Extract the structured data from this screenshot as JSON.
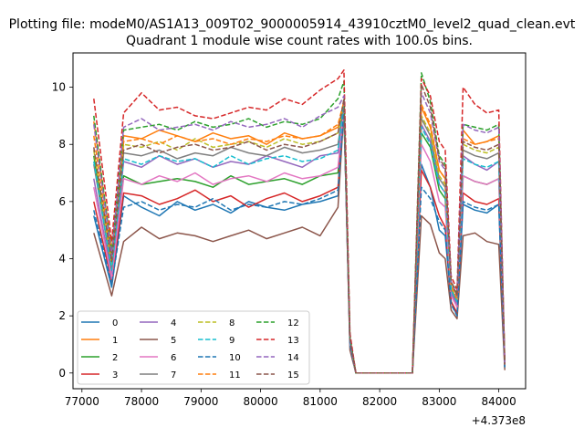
{
  "figure": {
    "suptitle": "Plotting file: modeM0/AS1A13_009T02_9000005914_43910cztM0_level2_quad_clean.evt",
    "axes_title": "Quadrant 1 module wise count rates with 100.0s bins.",
    "x_offset_label": "+4.373e8"
  },
  "chart_data": {
    "type": "line",
    "title": "Quadrant 1 module wise count rates with 100.0s bins.",
    "xlabel": "",
    "ylabel": "",
    "x_offset_text": "+4.373e8",
    "xlim": [
      76850,
      84450
    ],
    "ylim": [
      -0.55,
      11.2
    ],
    "x_ticks": [
      77000,
      78000,
      79000,
      80000,
      81000,
      82000,
      83000,
      84000
    ],
    "y_ticks": [
      0,
      2,
      4,
      6,
      8,
      10
    ],
    "grid": false,
    "legend": {
      "placement": "lower-left",
      "columns": 4
    },
    "series": [
      {
        "name": "0",
        "color": "#1f77b4",
        "style": "solid",
        "x": [
          77200,
          77500,
          77700,
          78000,
          78300,
          78600,
          78900,
          79200,
          79500,
          79800,
          80100,
          80400,
          80700,
          81000,
          81300,
          81400,
          81500,
          81600,
          81800,
          82000,
          82300,
          82550,
          82700,
          82850,
          83000,
          83100,
          83200,
          83300,
          83400,
          83600,
          83800,
          84000,
          84100
        ],
        "y": [
          5.5,
          3.0,
          6.2,
          5.8,
          5.5,
          6.0,
          5.7,
          5.9,
          5.6,
          6.0,
          5.8,
          5.7,
          5.9,
          6.0,
          6.2,
          9.2,
          1.0,
          0.0,
          0.0,
          0.0,
          0.0,
          0.0,
          7.3,
          6.5,
          5.0,
          4.8,
          2.5,
          2.0,
          5.9,
          5.7,
          5.6,
          5.9,
          0.2
        ]
      },
      {
        "name": "1",
        "color": "#ff7f0e",
        "style": "solid",
        "x": [
          77200,
          77500,
          77700,
          78000,
          78300,
          78600,
          78900,
          79200,
          79500,
          79800,
          80100,
          80400,
          80700,
          81000,
          81300,
          81400,
          81500,
          81600,
          81800,
          82000,
          82300,
          82550,
          82700,
          82850,
          83000,
          83100,
          83200,
          83300,
          83400,
          83600,
          83800,
          84000,
          84100
        ],
        "y": [
          8.8,
          4.3,
          8.3,
          8.2,
          8.5,
          8.3,
          8.1,
          8.4,
          8.2,
          8.3,
          8.0,
          8.4,
          8.2,
          8.3,
          8.6,
          9.4,
          1.2,
          0.0,
          0.0,
          0.0,
          0.0,
          0.0,
          9.3,
          8.6,
          7.1,
          6.8,
          3.0,
          2.5,
          8.5,
          8.0,
          8.1,
          8.3,
          0.3
        ]
      },
      {
        "name": "2",
        "color": "#2ca02c",
        "style": "solid",
        "x": [
          77200,
          77500,
          77700,
          78000,
          78300,
          78600,
          78900,
          79200,
          79500,
          79800,
          80100,
          80400,
          80700,
          81000,
          81300,
          81400,
          81500,
          81600,
          81800,
          82000,
          82300,
          82550,
          82700,
          82850,
          83000,
          83100,
          83200,
          83300,
          83400,
          83600,
          83800,
          84000,
          84100
        ],
        "y": [
          7.6,
          3.5,
          6.9,
          6.6,
          6.7,
          6.8,
          6.7,
          6.5,
          6.9,
          6.6,
          6.7,
          6.8,
          6.6,
          6.9,
          7.0,
          9.3,
          1.1,
          0.0,
          0.0,
          0.0,
          0.0,
          0.0,
          8.4,
          7.9,
          6.4,
          6.1,
          2.8,
          2.4,
          6.9,
          6.7,
          6.6,
          6.8,
          0.2
        ]
      },
      {
        "name": "3",
        "color": "#d62728",
        "style": "solid",
        "x": [
          77200,
          77500,
          77700,
          78000,
          78300,
          78600,
          78900,
          79200,
          79500,
          79800,
          80100,
          80400,
          80700,
          81000,
          81300,
          81400,
          81500,
          81600,
          81800,
          82000,
          82300,
          82550,
          82700,
          82850,
          83000,
          83100,
          83200,
          83300,
          83400,
          83600,
          83800,
          84000,
          84100
        ],
        "y": [
          6.0,
          3.2,
          6.3,
          6.2,
          5.9,
          6.1,
          6.4,
          6.0,
          6.2,
          5.8,
          6.1,
          6.3,
          6.0,
          6.2,
          6.5,
          9.3,
          1.0,
          0.0,
          0.0,
          0.0,
          0.0,
          0.0,
          7.1,
          6.5,
          5.5,
          5.1,
          2.5,
          2.1,
          6.3,
          6.0,
          5.9,
          6.1,
          0.2
        ]
      },
      {
        "name": "4",
        "color": "#9467bd",
        "style": "solid",
        "x": [
          77200,
          77500,
          77700,
          78000,
          78300,
          78600,
          78900,
          79200,
          79500,
          79800,
          80100,
          80400,
          80700,
          81000,
          81300,
          81400,
          81500,
          81600,
          81800,
          82000,
          82300,
          82550,
          82700,
          82850,
          83000,
          83100,
          83200,
          83300,
          83400,
          83600,
          83800,
          84000,
          84100
        ],
        "y": [
          6.8,
          3.4,
          7.4,
          7.2,
          7.6,
          7.3,
          7.5,
          7.2,
          7.4,
          7.3,
          7.6,
          7.4,
          7.2,
          7.6,
          7.7,
          9.3,
          1.1,
          0.0,
          0.0,
          0.0,
          0.0,
          0.0,
          8.7,
          8.1,
          6.6,
          6.3,
          2.8,
          2.4,
          7.6,
          7.3,
          7.1,
          7.4,
          0.2
        ]
      },
      {
        "name": "5",
        "color": "#8c564b",
        "style": "solid",
        "x": [
          77200,
          77500,
          77700,
          78000,
          78300,
          78600,
          78900,
          79200,
          79500,
          79800,
          80100,
          80400,
          80700,
          81000,
          81300,
          81400,
          81500,
          81600,
          81800,
          82000,
          82300,
          82550,
          82700,
          82850,
          83000,
          83100,
          83200,
          83300,
          83400,
          83600,
          83800,
          84000,
          84100
        ],
        "y": [
          4.9,
          2.7,
          4.6,
          5.1,
          4.7,
          4.9,
          4.8,
          4.6,
          4.8,
          5.0,
          4.7,
          4.9,
          5.1,
          4.8,
          5.8,
          9.2,
          0.8,
          0.0,
          0.0,
          0.0,
          0.0,
          0.0,
          5.5,
          5.2,
          4.2,
          4.0,
          2.2,
          1.9,
          4.8,
          4.9,
          4.6,
          4.5,
          0.1
        ]
      },
      {
        "name": "6",
        "color": "#e377c2",
        "style": "solid",
        "x": [
          77200,
          77500,
          77700,
          78000,
          78300,
          78600,
          78900,
          79200,
          79500,
          79800,
          80100,
          80400,
          80700,
          81000,
          81300,
          81400,
          81500,
          81600,
          81800,
          82000,
          82300,
          82550,
          82700,
          82850,
          83000,
          83100,
          83200,
          83300,
          83400,
          83600,
          83800,
          84000,
          84100
        ],
        "y": [
          6.5,
          3.3,
          6.8,
          6.6,
          6.9,
          6.7,
          7.0,
          6.6,
          6.8,
          6.9,
          6.7,
          7.0,
          6.8,
          6.9,
          7.2,
          9.3,
          1.0,
          0.0,
          0.0,
          0.0,
          0.0,
          0.0,
          8.0,
          7.4,
          6.0,
          5.8,
          2.7,
          2.3,
          6.9,
          6.7,
          6.6,
          6.8,
          0.2
        ]
      },
      {
        "name": "7",
        "color": "#7f7f7f",
        "style": "solid",
        "x": [
          77200,
          77500,
          77700,
          78000,
          78300,
          78600,
          78900,
          79200,
          79500,
          79800,
          80100,
          80400,
          80700,
          81000,
          81300,
          81400,
          81500,
          81600,
          81800,
          82000,
          82300,
          82550,
          82700,
          82850,
          83000,
          83100,
          83200,
          83300,
          83400,
          83600,
          83800,
          84000,
          84100
        ],
        "y": [
          7.3,
          3.6,
          7.7,
          7.6,
          7.8,
          7.5,
          7.7,
          7.6,
          7.9,
          7.7,
          7.6,
          7.9,
          7.7,
          7.8,
          8.0,
          9.4,
          1.1,
          0.0,
          0.0,
          0.0,
          0.0,
          0.0,
          8.9,
          8.3,
          6.8,
          6.5,
          2.9,
          2.5,
          7.8,
          7.6,
          7.5,
          7.7,
          0.2
        ]
      },
      {
        "name": "8",
        "color": "#bcbd22",
        "style": "dashed",
        "x": [
          77200,
          77500,
          77700,
          78000,
          78300,
          78600,
          78900,
          79200,
          79500,
          79800,
          80100,
          80400,
          80700,
          81000,
          81300,
          81400,
          81500,
          81600,
          81800,
          82000,
          82300,
          82550,
          82700,
          82850,
          83000,
          83100,
          83200,
          83300,
          83400,
          83600,
          83800,
          84000,
          84100
        ],
        "y": [
          7.8,
          3.8,
          8.0,
          7.9,
          8.1,
          7.8,
          8.2,
          7.9,
          8.0,
          8.1,
          7.9,
          8.2,
          8.0,
          8.1,
          8.4,
          9.5,
          1.2,
          0.0,
          0.0,
          0.0,
          0.0,
          0.0,
          9.0,
          8.4,
          6.9,
          6.6,
          3.0,
          2.6,
          8.0,
          7.8,
          7.7,
          7.9,
          0.3
        ]
      },
      {
        "name": "9",
        "color": "#17becf",
        "style": "dashed",
        "x": [
          77200,
          77500,
          77700,
          78000,
          78300,
          78600,
          78900,
          79200,
          79500,
          79800,
          80100,
          80400,
          80700,
          81000,
          81300,
          81400,
          81500,
          81600,
          81800,
          82000,
          82300,
          82550,
          82700,
          82850,
          83000,
          83100,
          83200,
          83300,
          83400,
          83600,
          83800,
          84000,
          84100
        ],
        "y": [
          7.4,
          3.6,
          7.5,
          7.3,
          7.6,
          7.4,
          7.5,
          7.2,
          7.6,
          7.3,
          7.5,
          7.6,
          7.4,
          7.5,
          7.8,
          9.4,
          1.1,
          0.0,
          0.0,
          0.0,
          0.0,
          0.0,
          8.6,
          8.0,
          6.6,
          6.3,
          2.9,
          2.5,
          7.5,
          7.3,
          7.2,
          7.4,
          0.2
        ]
      },
      {
        "name": "10",
        "color": "#1f77b4",
        "style": "dashed",
        "x": [
          77200,
          77500,
          77700,
          78000,
          78300,
          78600,
          78900,
          79200,
          79500,
          79800,
          80100,
          80400,
          80700,
          81000,
          81300,
          81400,
          81500,
          81600,
          81800,
          82000,
          82300,
          82550,
          82700,
          82850,
          83000,
          83100,
          83200,
          83300,
          83400,
          83600,
          83800,
          84000,
          84100
        ],
        "y": [
          5.7,
          3.1,
          5.8,
          6.0,
          5.7,
          5.9,
          5.8,
          6.1,
          5.7,
          5.9,
          5.8,
          6.0,
          5.9,
          6.1,
          6.4,
          9.2,
          1.0,
          0.0,
          0.0,
          0.0,
          0.0,
          0.0,
          6.5,
          6.1,
          5.3,
          5.0,
          2.4,
          2.0,
          6.0,
          5.8,
          5.7,
          5.9,
          0.2
        ]
      },
      {
        "name": "11",
        "color": "#ff7f0e",
        "style": "dashed",
        "x": [
          77200,
          77500,
          77700,
          78000,
          78300,
          78600,
          78900,
          79200,
          79500,
          79800,
          80100,
          80400,
          80700,
          81000,
          81300,
          81400,
          81500,
          81600,
          81800,
          82000,
          82300,
          82550,
          82700,
          82850,
          83000,
          83100,
          83200,
          83300,
          83400,
          83600,
          83800,
          84000,
          84100
        ],
        "y": [
          8.3,
          4.0,
          8.1,
          8.2,
          8.0,
          8.3,
          8.1,
          8.2,
          8.0,
          8.2,
          8.1,
          8.3,
          8.2,
          8.3,
          8.7,
          9.5,
          1.2,
          0.0,
          0.0,
          0.0,
          0.0,
          0.0,
          9.4,
          8.7,
          7.1,
          6.8,
          3.1,
          2.6,
          8.2,
          8.0,
          8.1,
          8.2,
          0.3
        ]
      },
      {
        "name": "12",
        "color": "#2ca02c",
        "style": "dashed",
        "x": [
          77200,
          77500,
          77700,
          78000,
          78300,
          78600,
          78900,
          79200,
          79500,
          79800,
          80100,
          80400,
          80700,
          81000,
          81300,
          81400,
          81500,
          81600,
          81800,
          82000,
          82300,
          82550,
          82700,
          82850,
          83000,
          83100,
          83200,
          83300,
          83400,
          83600,
          83800,
          84000,
          84100
        ],
        "y": [
          9.0,
          4.2,
          8.5,
          8.6,
          8.7,
          8.5,
          8.8,
          8.6,
          8.7,
          8.9,
          8.6,
          8.8,
          8.7,
          8.9,
          9.6,
          10.2,
          1.3,
          0.0,
          0.0,
          0.0,
          0.0,
          0.0,
          10.5,
          9.5,
          7.6,
          7.3,
          3.2,
          2.8,
          8.7,
          8.6,
          8.5,
          8.7,
          0.3
        ]
      },
      {
        "name": "13",
        "color": "#d62728",
        "style": "dashed",
        "x": [
          77200,
          77500,
          77700,
          78000,
          78300,
          78600,
          78900,
          79200,
          79500,
          79800,
          80100,
          80400,
          80700,
          81000,
          81300,
          81400,
          81500,
          81600,
          81800,
          82000,
          82300,
          82550,
          82700,
          82850,
          83000,
          83100,
          83200,
          83300,
          83400,
          83600,
          83800,
          84000,
          84100
        ],
        "y": [
          9.6,
          4.6,
          9.1,
          9.8,
          9.2,
          9.3,
          9.0,
          8.9,
          9.1,
          9.3,
          9.2,
          9.6,
          9.4,
          9.9,
          10.3,
          10.6,
          1.4,
          0.0,
          0.0,
          0.0,
          0.0,
          0.0,
          10.3,
          9.7,
          8.1,
          7.8,
          3.4,
          2.9,
          10.0,
          9.4,
          9.1,
          9.2,
          0.3
        ]
      },
      {
        "name": "14",
        "color": "#9467bd",
        "style": "dashed",
        "x": [
          77200,
          77500,
          77700,
          78000,
          78300,
          78600,
          78900,
          79200,
          79500,
          79800,
          80100,
          80400,
          80700,
          81000,
          81300,
          81400,
          81500,
          81600,
          81800,
          82000,
          82300,
          82550,
          82700,
          82850,
          83000,
          83100,
          83200,
          83300,
          83400,
          83600,
          83800,
          84000,
          84100
        ],
        "y": [
          8.7,
          4.1,
          8.6,
          8.9,
          8.5,
          8.6,
          8.7,
          8.5,
          8.8,
          8.6,
          8.7,
          8.9,
          8.6,
          9.0,
          9.3,
          9.7,
          1.2,
          0.0,
          0.0,
          0.0,
          0.0,
          0.0,
          9.8,
          9.1,
          7.4,
          7.1,
          3.2,
          2.7,
          8.7,
          8.5,
          8.4,
          8.6,
          0.3
        ]
      },
      {
        "name": "15",
        "color": "#8c564b",
        "style": "dashed",
        "x": [
          77200,
          77500,
          77700,
          78000,
          78300,
          78600,
          78900,
          79200,
          79500,
          79800,
          80100,
          80400,
          80700,
          81000,
          81300,
          81400,
          81500,
          81600,
          81800,
          82000,
          82300,
          82550,
          82700,
          82850,
          83000,
          83100,
          83200,
          83300,
          83400,
          83600,
          83800,
          84000,
          84100
        ],
        "y": [
          7.9,
          3.9,
          7.8,
          8.0,
          7.7,
          7.9,
          8.0,
          7.8,
          7.9,
          8.1,
          7.8,
          8.0,
          7.9,
          8.1,
          8.4,
          9.6,
          1.2,
          0.0,
          0.0,
          0.0,
          0.0,
          0.0,
          10.1,
          9.3,
          7.5,
          7.2,
          3.2,
          2.7,
          8.1,
          7.9,
          7.8,
          8.0,
          0.3
        ]
      }
    ]
  }
}
